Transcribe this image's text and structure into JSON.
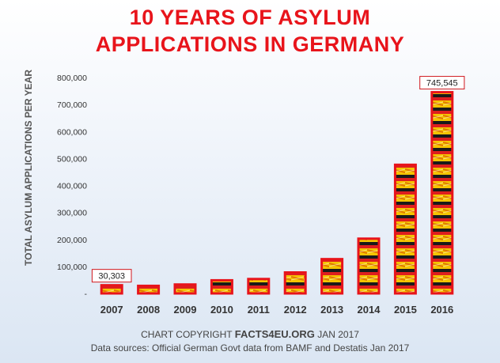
{
  "title_line1": "10 YEARS OF ASYLUM",
  "title_line2": "APPLICATIONS IN GERMANY",
  "footer": {
    "copyright_prefix": "CHART COPYRIGHT",
    "copyright_site": "FACTS4EU.ORG",
    "copyright_suffix": "JAN 2017",
    "sources": "Data sources: Official German Govt data from BAMF and Destatis Jan 2017"
  },
  "colors": {
    "title": "#e8141b",
    "bar_border": "#e8141b",
    "flag_black": "#111111",
    "flag_red": "#dd1f1f",
    "flag_gold": "#f5c400"
  },
  "chart_data": {
    "type": "bar",
    "title": "10 YEARS OF ASYLUM APPLICATIONS IN GERMANY",
    "xlabel": "",
    "ylabel": "TOTAL ASYLUM APPLICATIONS PER YEAR",
    "categories": [
      "2007",
      "2008",
      "2009",
      "2010",
      "2011",
      "2012",
      "2013",
      "2014",
      "2015",
      "2016"
    ],
    "values": [
      30303,
      28018,
      33033,
      48589,
      53347,
      77651,
      127023,
      202834,
      476649,
      745545
    ],
    "ylim": [
      0,
      800000
    ],
    "yticks": [
      0,
      100000,
      200000,
      300000,
      400000,
      500000,
      600000,
      700000,
      800000
    ],
    "ytick_labels": [
      "-",
      "100,000",
      "200,000",
      "300,000",
      "400,000",
      "500,000",
      "600,000",
      "700,000",
      "800,000"
    ],
    "data_labels": [
      {
        "category": "2007",
        "text": "30,303"
      },
      {
        "category": "2016",
        "text": "745,545"
      }
    ],
    "grid": false,
    "legend": "none"
  }
}
